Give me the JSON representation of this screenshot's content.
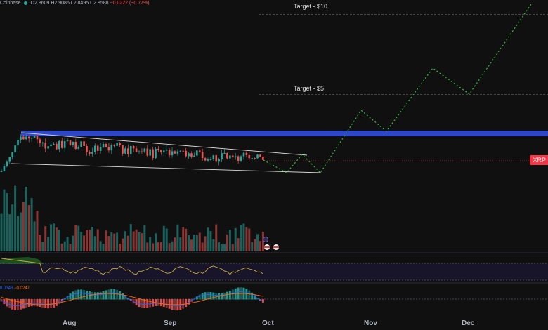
{
  "header": {
    "exchange": "Coinbase",
    "open_label": "O",
    "open": "2.8609",
    "high_label": "H",
    "high": "2.9086",
    "low_label": "L",
    "low": "2.8495",
    "close_label": "C",
    "close": "2.8588",
    "change": "−0.0222 (−0.77%)"
  },
  "targets": {
    "t10": "Target - $10",
    "t5": "Target - $5"
  },
  "price_tag": "XRP",
  "macd": {
    "v1": "0.0346",
    "v2": "−0.0247"
  },
  "x_axis": [
    "Aug",
    "Sep",
    "Oct",
    "Nov",
    "Dec"
  ],
  "colors": {
    "up": "#26a69a",
    "down": "#ef5350",
    "zone": "#2e48c9",
    "projection": "#2fbf3a",
    "rsi": "#c9b03a"
  }
}
